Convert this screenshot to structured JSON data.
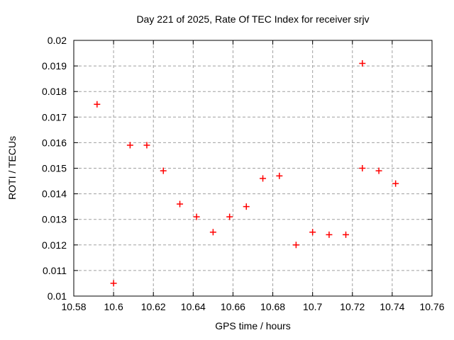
{
  "chart_data": {
    "type": "scatter",
    "title": "Day 221 of 2025, Rate Of TEC Index for receiver srjv",
    "xlabel": "GPS time / hours",
    "ylabel": "ROTI / TECUs",
    "xlim": [
      10.58,
      10.76
    ],
    "ylim": [
      0.01,
      0.02
    ],
    "xticks": [
      10.58,
      10.6,
      10.62,
      10.64,
      10.66,
      10.68,
      10.7,
      10.72,
      10.74,
      10.76
    ],
    "xtick_labels": [
      "10.58",
      "10.6",
      "10.62",
      "10.64",
      "10.66",
      "10.68",
      "10.7",
      "10.72",
      "10.74",
      "10.76"
    ],
    "yticks": [
      0.01,
      0.011,
      0.012,
      0.013,
      0.014,
      0.015,
      0.016,
      0.017,
      0.018,
      0.019,
      0.02
    ],
    "ytick_labels": [
      "0.01",
      "0.011",
      "0.012",
      "0.013",
      "0.014",
      "0.015",
      "0.016",
      "0.017",
      "0.018",
      "0.019",
      "0.02"
    ],
    "grid": true,
    "legend": false,
    "marker": "plus",
    "series": [
      {
        "name": "ROTI",
        "x": [
          10.5917,
          10.6,
          10.6083,
          10.6167,
          10.625,
          10.6333,
          10.6417,
          10.65,
          10.6583,
          10.6667,
          10.675,
          10.6833,
          10.6917,
          10.7,
          10.7083,
          10.7167,
          10.725,
          10.725,
          10.7333,
          10.7417
        ],
        "y": [
          0.0175,
          0.0105,
          0.0159,
          0.0159,
          0.0149,
          0.0136,
          0.0131,
          0.0125,
          0.0131,
          0.0135,
          0.0146,
          0.0147,
          0.012,
          0.0125,
          0.0124,
          0.0124,
          0.0191,
          0.015,
          0.0149,
          0.0144
        ]
      }
    ]
  },
  "colors": {
    "marker": "#ff0000",
    "grid": "#a0a0a0",
    "frame": "#000000",
    "background": "#ffffff",
    "text": "#000000"
  }
}
